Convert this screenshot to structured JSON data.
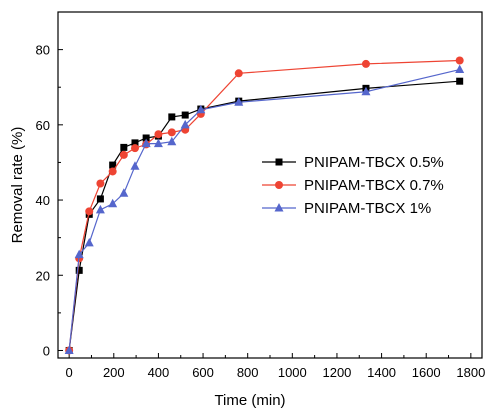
{
  "chart_data": {
    "type": "line",
    "xlabel": "Time (min)",
    "ylabel": "Removal rate (%)",
    "xlim": [
      -50,
      1850
    ],
    "ylim": [
      -2,
      90
    ],
    "xticks": [
      0,
      200,
      400,
      600,
      800,
      1000,
      1200,
      1400,
      1600,
      1800
    ],
    "yticks": [
      0,
      20,
      40,
      60,
      80
    ],
    "legend_position": "center-right",
    "grid": false,
    "series": [
      {
        "name": "PNIPAM-TBCX 0.5%",
        "color": "#000000",
        "marker": "square",
        "x": [
          0,
          45,
          90,
          140,
          195,
          245,
          295,
          345,
          400,
          460,
          520,
          590,
          760,
          1330,
          1750
        ],
        "y": [
          0,
          21.3,
          36.2,
          40.3,
          49.3,
          54.0,
          55.2,
          56.5,
          57.0,
          62.1,
          62.6,
          64.2,
          66.3,
          69.7,
          71.6
        ]
      },
      {
        "name": "PNIPAM-TBCX 0.7%",
        "color": "#ee4433",
        "marker": "circle",
        "x": [
          0,
          45,
          90,
          140,
          195,
          245,
          295,
          345,
          400,
          460,
          520,
          590,
          760,
          1330,
          1750
        ],
        "y": [
          0,
          24.5,
          37.0,
          44.4,
          47.6,
          52.0,
          53.8,
          54.8,
          57.5,
          58.0,
          58.7,
          62.9,
          73.7,
          76.2,
          77.1
        ]
      },
      {
        "name": "PNIPAM-TBCX 1%",
        "color": "#5566cc",
        "marker": "triangle",
        "x": [
          0,
          45,
          90,
          140,
          195,
          245,
          295,
          345,
          400,
          460,
          520,
          590,
          760,
          1330,
          1750
        ],
        "y": [
          0,
          25.5,
          28.6,
          37.4,
          39.0,
          41.8,
          49.0,
          55.0,
          55.0,
          55.5,
          60.0,
          64.0,
          66.0,
          68.8,
          74.7
        ]
      }
    ]
  }
}
